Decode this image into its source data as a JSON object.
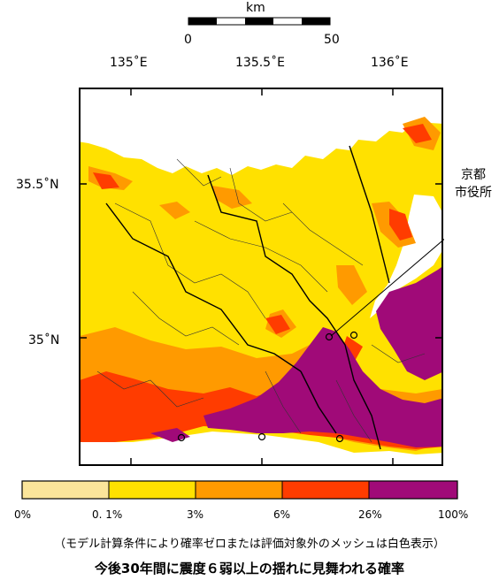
{
  "scale_bar": {
    "unit": "km",
    "labels": [
      "0",
      "50"
    ]
  },
  "axes": {
    "lon_labels": [
      "135˚E",
      "135.5˚E",
      "136˚E"
    ],
    "lat_labels": [
      "35.5˚N",
      "35˚N"
    ]
  },
  "callout": {
    "line1": "京都",
    "line2": "市役所"
  },
  "legend": {
    "classes": [
      {
        "color": "#fbe59a"
      },
      {
        "color": "#ffe100"
      },
      {
        "color": "#ff9a00"
      },
      {
        "color": "#ff3c00"
      },
      {
        "color": "#a00a78"
      }
    ],
    "tick_labels": [
      "0%",
      "0. 1%",
      "3%",
      "6%",
      "26%",
      "100%"
    ]
  },
  "note": "（モデル計算条件により確率ゼロまたは評価対象外のメッシュは白色表示）",
  "caption": "今後30年間に震度６弱以上の揺れに見舞われる確率",
  "colors": {
    "low": "#ffe100",
    "mid": "#ff9a00",
    "high": "#ff3c00",
    "very_high": "#a00a78",
    "water": "#ffffff"
  }
}
